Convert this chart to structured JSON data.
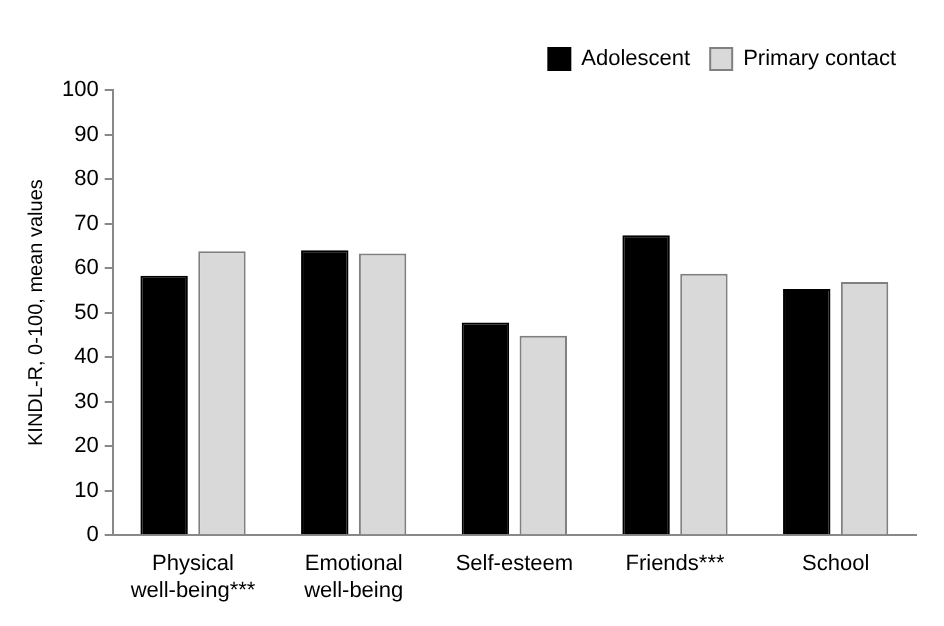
{
  "chart_data": {
    "type": "bar",
    "ylabel": "KINDL-R, 0-100, mean values",
    "categories": [
      "Physical well-being***",
      "Emotional well-being",
      "Self-esteem",
      "Friends***",
      "School"
    ],
    "series": [
      {
        "name": "Adolescent",
        "color": "#000000",
        "values": [
          58.3,
          64,
          47.8,
          67.4,
          55.3
        ]
      },
      {
        "name": "Primary contact",
        "color": "#d9d9d9",
        "values": [
          63.8,
          63.3,
          44.8,
          58.7,
          56.9
        ]
      }
    ],
    "ylim": [
      0,
      100
    ],
    "yticks": [
      0,
      10,
      20,
      30,
      40,
      50,
      60,
      70,
      80,
      90,
      100
    ],
    "grid": false,
    "legend": "top right"
  }
}
